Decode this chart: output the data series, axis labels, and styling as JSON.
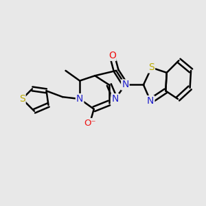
{
  "bg_color": "#e8e8e8",
  "bond_color": "#000000",
  "bond_width": 1.8,
  "N_color": "#2020cc",
  "O_color": "#ee1111",
  "S_color": "#bbaa00",
  "figsize": [
    3.0,
    3.0
  ],
  "dpi": 100,
  "xlim": [
    0,
    10
  ],
  "ylim": [
    0,
    10
  ]
}
